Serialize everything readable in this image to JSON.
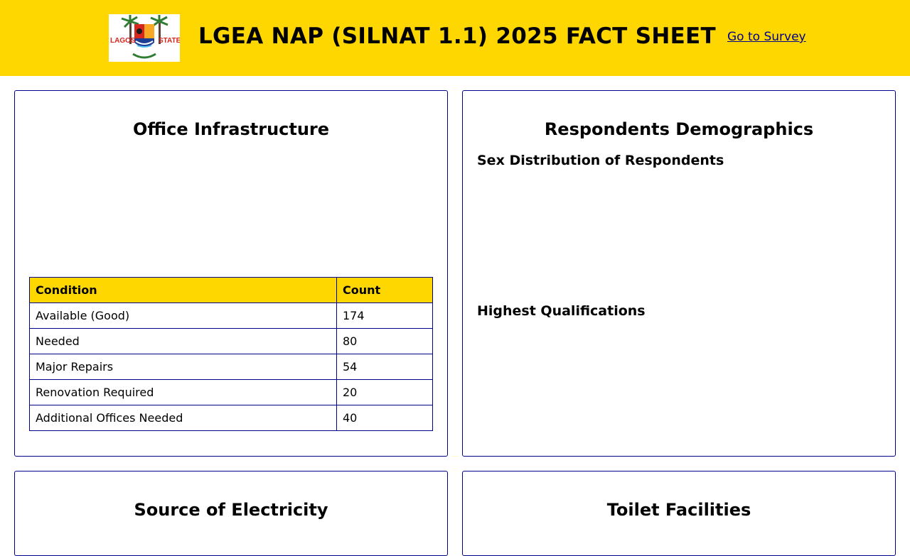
{
  "header": {
    "title": "LGEA NAP (SILNAT 1.1) 2025 FACT SHEET",
    "survey_link": "Go to Survey",
    "logo": {
      "left_label": "LAGOS",
      "right_label": "STATE",
      "colors": {
        "background": "#ffd700",
        "shield_red": "#d7261e",
        "shield_blue": "#1c3f94",
        "palm_green": "#2e7d32"
      }
    }
  },
  "office_infrastructure": {
    "title": "Office Infrastructure",
    "columns": [
      "Condition",
      "Count"
    ],
    "rows": [
      {
        "condition": "Available (Good)",
        "count": "174"
      },
      {
        "condition": "Needed",
        "count": "80"
      },
      {
        "condition": "Major Repairs",
        "count": "54"
      },
      {
        "condition": "Renovation Required",
        "count": "20"
      },
      {
        "condition": "Additional Offices Needed",
        "count": "40"
      }
    ]
  },
  "demographics": {
    "title": "Respondents Demographics",
    "sex_heading": "Sex Distribution of Respondents",
    "qualifications_heading": "Highest Qualifications"
  },
  "electricity": {
    "title": "Source of Electricity"
  },
  "toilet": {
    "title": "Toilet Facilities"
  },
  "colors": {
    "accent": "#ffd700",
    "border": "#00008b",
    "link": "#00008b"
  }
}
